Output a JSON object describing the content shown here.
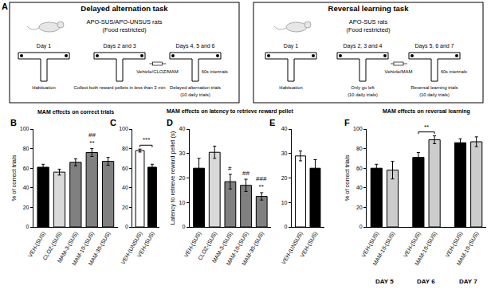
{
  "panel_a": {
    "label": "A",
    "boxes": [
      {
        "title": "Delayed alternation task",
        "subjects": "APO-SUS/APO-UNSUS rats",
        "condition": "(Food restricted)",
        "treatment": "Vehicle/CLOZ/MAM",
        "intertrial": "60s intertrials",
        "days": [
          {
            "day": "Day 1",
            "caption": [
              "Habituation"
            ]
          },
          {
            "day": "Days 2 and 3",
            "caption": [
              "Collect both reward pellets in less than 3 min"
            ]
          },
          {
            "day": "Days 4, 5 and 6",
            "caption": [
              "Delayed alternation trials",
              "(10 daily trials)"
            ]
          }
        ]
      },
      {
        "title": "Reversal learning task",
        "subjects": "APO-SUS rats",
        "condition": "(Food restricted)",
        "treatment": "Vehicle/MAM",
        "intertrial": "60s intertrials",
        "days": [
          {
            "day": "Day 1",
            "caption": [
              "Habituation"
            ]
          },
          {
            "day": "Days 2, 3 and 4",
            "caption": [
              "Only go left",
              "(10 daily trials)"
            ]
          },
          {
            "day": "Days 5, 6 and 7",
            "caption": [
              "Reversal learning trials",
              "(10 daily trials)"
            ]
          }
        ]
      }
    ]
  },
  "chart_data": [
    {
      "type": "bar",
      "label": "B",
      "title": "MAM effects on correct trials",
      "y_label": "% of correct trials",
      "categories": [
        "VEH-(SUS)",
        "CLOZ-(SUS)",
        "MAM-3-(SUS)",
        "MAM-10-(SUS)",
        "MAM-30-(SUS)"
      ],
      "values": [
        61,
        56,
        66,
        76,
        67
      ],
      "errors": [
        3,
        3,
        3.5,
        4,
        4
      ],
      "colors": [
        "#000000",
        "#d9d9d9",
        "#808080",
        "#808080",
        "#808080"
      ],
      "ylim": [
        0,
        100
      ],
      "yticks": [
        0,
        20,
        40,
        60,
        80,
        100
      ],
      "grid": false,
      "annotations": [
        {
          "at": 3,
          "text": [
            "##",
            "**"
          ]
        }
      ]
    },
    {
      "type": "bar",
      "label": "C",
      "categories": [
        "VEH-(UNSUS)",
        "VEH-(SUS)"
      ],
      "values": [
        78,
        61
      ],
      "errors": [
        1.5,
        3
      ],
      "colors": [
        "#ffffff",
        "#000000"
      ],
      "ylim": [
        0,
        100
      ],
      "yticks": [
        0,
        20,
        40,
        60,
        80,
        100
      ],
      "grid": false,
      "brackets": [
        {
          "between": [
            0,
            1
          ],
          "text": "***"
        }
      ]
    },
    {
      "type": "bar",
      "label": "D",
      "title": "MAM effects on latency to retrieve reward pellet",
      "y_label": "Latency to retrieve reward pellet (s)",
      "categories": [
        "VEH-(SUS)",
        "CLOZ-(SUS)",
        "MAM-3-(SUS)",
        "MAM-10-(SUS)",
        "MAM-30-(SUS)"
      ],
      "values": [
        24,
        30.5,
        18.5,
        17,
        12.5
      ],
      "errors": [
        4,
        2.5,
        3,
        2.5,
        1.5
      ],
      "colors": [
        "#000000",
        "#d9d9d9",
        "#808080",
        "#808080",
        "#808080"
      ],
      "ylim": [
        0,
        40
      ],
      "yticks": [
        0,
        10,
        20,
        30,
        40
      ],
      "grid": false,
      "annotations": [
        {
          "at": 2,
          "text": [
            "#"
          ]
        },
        {
          "at": 3,
          "text": [
            "##"
          ]
        },
        {
          "at": 4,
          "text": [
            "###",
            "**"
          ]
        }
      ]
    },
    {
      "type": "bar",
      "label": "E",
      "categories": [
        "VEH-(UNSUS)",
        "VEH-(SUS)"
      ],
      "values": [
        29,
        24
      ],
      "errors": [
        2,
        3.5
      ],
      "colors": [
        "#ffffff",
        "#000000"
      ],
      "ylim": [
        0,
        40
      ],
      "yticks": [
        0,
        10,
        20,
        30,
        40
      ],
      "grid": false
    },
    {
      "type": "bar",
      "label": "F",
      "title": "MAM effects on reversal learning",
      "y_label": "% of correct trials",
      "categories": [
        "VEH-(SUS)",
        "MAM-10-(SUS)",
        "VEH-(SUS)",
        "MAM-10-(SUS)",
        "VEH-(SUS)",
        "MAM-10-(SUS)"
      ],
      "group_labels": [
        "DAY 5",
        "DAY 6",
        "DAY 7"
      ],
      "values": [
        60,
        58,
        71,
        89,
        86,
        87
      ],
      "errors": [
        4,
        9,
        5,
        4,
        4,
        5
      ],
      "colors": [
        "#000000",
        "#cccccc",
        "#000000",
        "#cccccc",
        "#000000",
        "#cccccc"
      ],
      "ylim": [
        0,
        100
      ],
      "yticks": [
        0,
        20,
        40,
        60,
        80,
        100
      ],
      "grid": false,
      "brackets": [
        {
          "between": [
            2,
            3
          ],
          "text": "**"
        }
      ]
    }
  ]
}
